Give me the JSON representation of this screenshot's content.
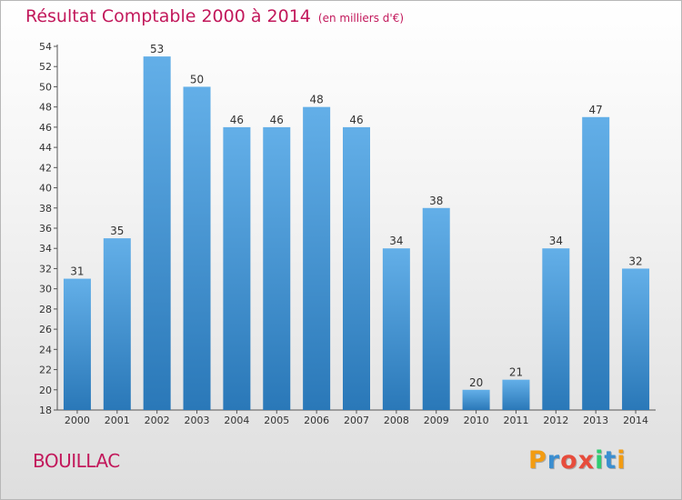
{
  "header": {
    "title": "Résultat Comptable 2000 à 2014",
    "subtitle": "(en milliers d'€)"
  },
  "commune": "BOUILLAC",
  "logo": {
    "text": "Proxiti",
    "letters": [
      "P",
      "r",
      "o",
      "x",
      "i",
      "t",
      "i"
    ],
    "colors": [
      "#f39c12",
      "#3b8ed0",
      "#e74c3c",
      "#e74c3c",
      "#2ecc71",
      "#3b8ed0",
      "#f39c12"
    ]
  },
  "colors": {
    "bar_light": "#63afe8",
    "bar_dark": "#2a78b8",
    "title": "#c2185b"
  },
  "chart_data": {
    "type": "bar",
    "title": "Résultat Comptable 2000 à 2014",
    "subtitle": "(en milliers d'€)",
    "categories": [
      "2000",
      "2001",
      "2002",
      "2003",
      "2004",
      "2005",
      "2006",
      "2007",
      "2008",
      "2009",
      "2010",
      "2011",
      "2012",
      "2013",
      "2014"
    ],
    "values": [
      31,
      35,
      53,
      50,
      46,
      46,
      48,
      46,
      34,
      38,
      20,
      21,
      34,
      47,
      32
    ],
    "xlabel": "",
    "ylabel": "",
    "ylim": [
      18,
      54
    ],
    "yticks": [
      18,
      20,
      22,
      24,
      26,
      28,
      30,
      32,
      34,
      36,
      38,
      40,
      42,
      44,
      46,
      48,
      50,
      52,
      54
    ],
    "grid": false
  }
}
